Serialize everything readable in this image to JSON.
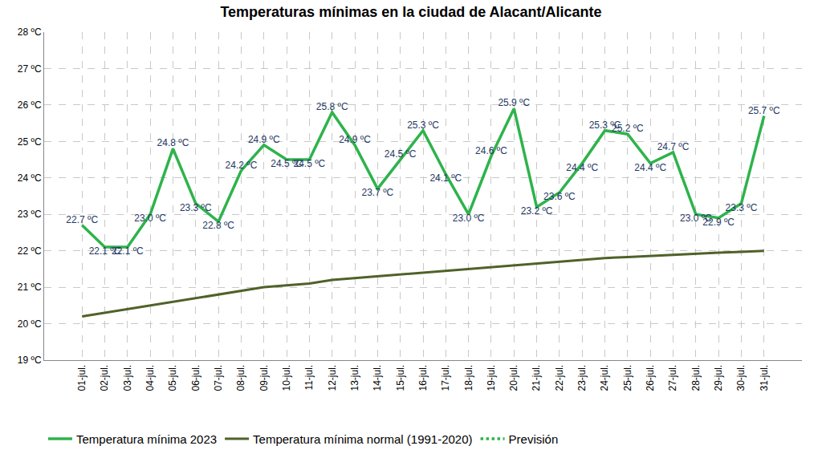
{
  "chart_data": {
    "type": "line",
    "title": "Temperaturas mínimas en la ciudad de Alacant/Alicante",
    "categories": [
      "01-jul.",
      "02-jul.",
      "03-jul.",
      "04-jul.",
      "05-jul.",
      "06-jul.",
      "07-jul.",
      "08-jul.",
      "09-jul.",
      "10-jul.",
      "11-jul.",
      "12-jul.",
      "13-jul.",
      "14-jul.",
      "15-jul.",
      "16-jul.",
      "17-jul.",
      "18-jul.",
      "19-jul.",
      "20-jul.",
      "21-jul.",
      "22-jul.",
      "23-jul.",
      "24-jul.",
      "25-jul.",
      "26-jul.",
      "27-jul.",
      "28-jul.",
      "29-jul.",
      "30-jul.",
      "31-jul."
    ],
    "series": [
      {
        "name": "Temperatura mínima 2023",
        "color": "#2eb34b",
        "line_style": "solid",
        "data_labels": true,
        "values": [
          22.7,
          22.1,
          22.1,
          23.0,
          24.8,
          23.3,
          22.8,
          24.2,
          24.9,
          24.5,
          24.5,
          25.8,
          24.9,
          23.7,
          24.5,
          25.3,
          24.1,
          23.0,
          24.6,
          25.9,
          23.2,
          23.6,
          24.4,
          25.3,
          25.2,
          24.4,
          24.7,
          23.0,
          22.9,
          23.3,
          25.7
        ],
        "value_labels": [
          "22.7 ºC",
          "22.1 ºC",
          "22.1 ºC",
          "23.0 ºC",
          "24.8 ºC",
          "23.3 ºC",
          "22.8 ºC",
          "24.2 ºC",
          "24.9 ºC",
          "24.5 ºC",
          "24.5 ºC",
          "25.8 ºC",
          "24.9 ºC",
          "23.7 ºC",
          "24.5 ºC",
          "25.3 ºC",
          "24.1 ºC",
          "23.0 ºC",
          "24.6 ºC",
          "25.9 ºC",
          "23.2 ºC",
          "23.6 ºC",
          "24.4 ºC",
          "25.3 ºC",
          "25.2 ºC",
          "24.4 ºC",
          "24.7 ºC",
          "23.0 ºC",
          "22.9 ºC",
          "23.3 ºC",
          "25.7 ºC"
        ]
      },
      {
        "name": "Temperatura mínima normal (1991-2020)",
        "color": "#4f6228",
        "line_style": "solid",
        "values": [
          20.2,
          20.3,
          20.4,
          20.5,
          20.6,
          20.7,
          20.8,
          20.9,
          21.0,
          21.05,
          21.1,
          21.2,
          21.25,
          21.3,
          21.35,
          21.4,
          21.45,
          21.5,
          21.55,
          21.6,
          21.65,
          21.7,
          21.75,
          21.8,
          21.83,
          21.86,
          21.9,
          21.93,
          21.95,
          21.97,
          22.0
        ]
      },
      {
        "name": "Previsión",
        "color": "#2eb34b",
        "line_style": "dot",
        "values": [
          null,
          null,
          null,
          null,
          null,
          null,
          null,
          null,
          null,
          null,
          null,
          null,
          null,
          null,
          null,
          null,
          null,
          null,
          null,
          null,
          null,
          null,
          null,
          null,
          null,
          null,
          null,
          null,
          null,
          null,
          null
        ]
      }
    ],
    "ylim": [
      19,
      28
    ],
    "yticks": [
      {
        "value": 19,
        "label": "19 ºC"
      },
      {
        "value": 20,
        "label": "20 ºC"
      },
      {
        "value": 21,
        "label": "21 ºC"
      },
      {
        "value": 22,
        "label": "22 ºC"
      },
      {
        "value": 23,
        "label": "23 ºC"
      },
      {
        "value": 24,
        "label": "24 ºC"
      },
      {
        "value": 25,
        "label": "25 ºC"
      },
      {
        "value": 26,
        "label": "26 ºC"
      },
      {
        "value": 27,
        "label": "27 ºC"
      },
      {
        "value": 28,
        "label": "28 ºC"
      }
    ],
    "grid": true,
    "legend": "bottom"
  }
}
